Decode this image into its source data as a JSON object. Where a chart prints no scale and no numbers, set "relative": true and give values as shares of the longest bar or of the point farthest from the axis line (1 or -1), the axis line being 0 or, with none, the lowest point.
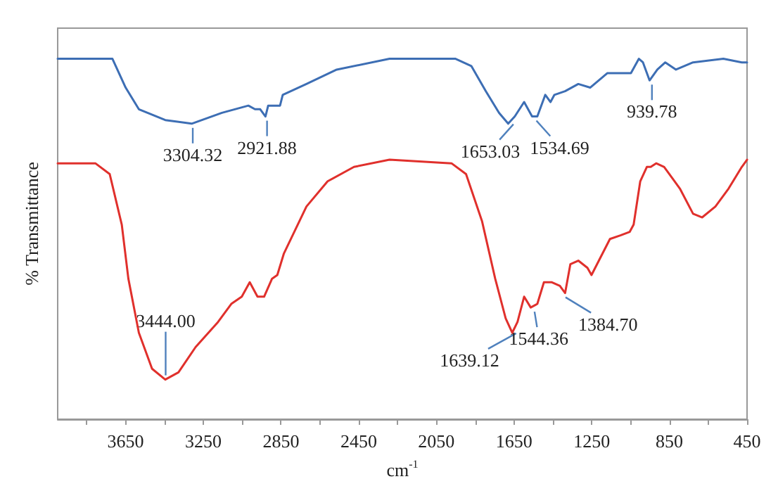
{
  "chart_data": {
    "type": "line",
    "relative": true,
    "xlabel": "cm$^{-1}$",
    "ylabel": "% Transmittance",
    "xlim": [
      4000,
      450
    ],
    "xticks": [
      {
        "value": 3850,
        "label": null
      },
      3650,
      {
        "value": 3450,
        "label": null
      },
      3250,
      {
        "value": 3050,
        "label": null
      },
      2850,
      {
        "value": 2650,
        "label": null
      },
      2450,
      {
        "value": 2250,
        "label": null
      },
      2050,
      {
        "value": 1850,
        "label": null
      },
      1650,
      {
        "value": 1450,
        "label": null
      },
      1250,
      {
        "value": 1050,
        "label": null
      },
      850,
      {
        "value": 650,
        "label": null
      },
      450
    ],
    "grid": false,
    "marker": "none",
    "line_style": "solid",
    "series": [
      {
        "color": "#3d6eb4",
        "x": [
          4000,
          3718,
          3650,
          3582,
          3446,
          3310,
          3154,
          3018,
          2984,
          2957,
          2930,
          2916,
          2889,
          2855,
          2841,
          2719,
          2563,
          2291,
          1951,
          1870,
          1795,
          1727,
          1680,
          1646,
          1598,
          1557,
          1530,
          1489,
          1462,
          1442,
          1387,
          1319,
          1258,
          1170,
          1048,
          1007,
          986,
          952,
          912,
          871,
          816,
          728,
          572,
          477,
          450
        ],
        "values": [
          1.0,
          1.0,
          0.92,
          0.86,
          0.83,
          0.82,
          0.85,
          0.87,
          0.86,
          0.86,
          0.84,
          0.87,
          0.87,
          0.87,
          0.9,
          0.93,
          0.97,
          1.0,
          1.0,
          0.98,
          0.91,
          0.85,
          0.82,
          0.84,
          0.88,
          0.84,
          0.84,
          0.9,
          0.88,
          0.9,
          0.91,
          0.93,
          0.92,
          0.96,
          0.96,
          1.0,
          0.99,
          0.94,
          0.97,
          0.99,
          0.97,
          0.99,
          1.0,
          0.99,
          0.99
        ]
      },
      {
        "color": "#e0302c",
        "x": [
          4000,
          3806,
          3732,
          3670,
          3636,
          3582,
          3514,
          3446,
          3378,
          3290,
          3174,
          3106,
          3052,
          3011,
          2971,
          2937,
          2896,
          2869,
          2835,
          2719,
          2610,
          2474,
          2291,
          1972,
          1897,
          1815,
          1747,
          1693,
          1659,
          1632,
          1598,
          1564,
          1530,
          1496,
          1455,
          1414,
          1387,
          1360,
          1319,
          1272,
          1251,
          1156,
          1102,
          1054,
          1034,
          1000,
          966,
          946,
          918,
          877,
          796,
          728,
          681,
          613,
          545,
          477,
          450
        ],
        "values": [
          0.71,
          0.71,
          0.68,
          0.54,
          0.39,
          0.24,
          0.14,
          0.11,
          0.13,
          0.2,
          0.27,
          0.32,
          0.34,
          0.38,
          0.34,
          0.34,
          0.39,
          0.4,
          0.46,
          0.59,
          0.66,
          0.7,
          0.72,
          0.71,
          0.68,
          0.55,
          0.39,
          0.28,
          0.24,
          0.27,
          0.34,
          0.31,
          0.32,
          0.38,
          0.38,
          0.37,
          0.35,
          0.43,
          0.44,
          0.42,
          0.4,
          0.5,
          0.51,
          0.52,
          0.54,
          0.66,
          0.7,
          0.7,
          0.71,
          0.7,
          0.64,
          0.57,
          0.56,
          0.59,
          0.64,
          0.7,
          0.72
        ]
      }
    ],
    "annotations": [
      {
        "text": "3304.32",
        "x": 3304.32,
        "y": 0.82
      },
      {
        "text": "2921.88",
        "x": 2921.88,
        "y": 0.84
      },
      {
        "text": "1653.03",
        "x": 1653.03,
        "y": 0.83
      },
      {
        "text": "1534.69",
        "x": 1534.69,
        "y": 0.84
      },
      {
        "text": "939.78",
        "x": 939.78,
        "y": 0.94
      },
      {
        "text": "3444.00",
        "x": 3444.0,
        "y": 0.11
      },
      {
        "text": "1639.12",
        "x": 1639.12,
        "y": 0.25
      },
      {
        "text": "1544.36",
        "x": 1544.36,
        "y": 0.31
      },
      {
        "text": "1384.70",
        "x": 1384.7,
        "y": 0.35
      }
    ]
  }
}
